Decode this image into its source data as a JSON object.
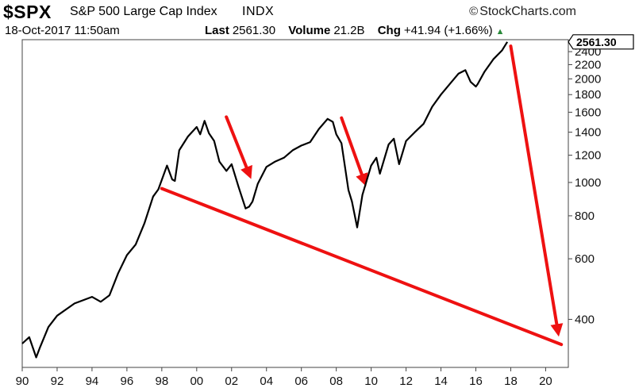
{
  "header": {
    "symbol": "$SPX",
    "name": "S&P 500 Large Cap Index",
    "exchange": "INDX",
    "brand": "StockCharts.com",
    "brand_mark": "©",
    "datetime": "18-Oct-2017 11:50am",
    "last_label": "Last",
    "last_value": "2561.30",
    "volume_label": "Volume",
    "volume_value": "21.2B",
    "chg_label": "Chg",
    "chg_value": "+41.94 (+1.66%)",
    "chg_arrow": "▲"
  },
  "chart_data": {
    "type": "line",
    "title": "$SPX S&P 500 Large Cap Index INDX",
    "xlim": [
      1990,
      2021.3
    ],
    "ylim": [
      290,
      2600
    ],
    "y_scale": "log",
    "last_value_label": "2561.30",
    "x_ticks": [
      {
        "value": 1990,
        "label": "90"
      },
      {
        "value": 1992,
        "label": "92"
      },
      {
        "value": 1994,
        "label": "94"
      },
      {
        "value": 1996,
        "label": "96"
      },
      {
        "value": 1998,
        "label": "98"
      },
      {
        "value": 2000,
        "label": "00"
      },
      {
        "value": 2002,
        "label": "02"
      },
      {
        "value": 2004,
        "label": "04"
      },
      {
        "value": 2006,
        "label": "06"
      },
      {
        "value": 2008,
        "label": "08"
      },
      {
        "value": 2010,
        "label": "10"
      },
      {
        "value": 2012,
        "label": "12"
      },
      {
        "value": 2014,
        "label": "14"
      },
      {
        "value": 2016,
        "label": "16"
      },
      {
        "value": 2018,
        "label": "18"
      },
      {
        "value": 2020,
        "label": "20"
      }
    ],
    "y_ticks": [
      400,
      600,
      800,
      1000,
      1200,
      1400,
      1600,
      1800,
      2000,
      2200,
      2400
    ],
    "grid": false,
    "series": [
      {
        "color": "#000000",
        "x": [
          1990.0,
          1990.4,
          1990.8,
          1991.0,
          1991.5,
          1992.0,
          1993.0,
          1994.0,
          1994.5,
          1995.0,
          1995.5,
          1996.0,
          1996.5,
          1997.0,
          1997.5,
          1997.8,
          1998.3,
          1998.6,
          1998.75,
          1999.0,
          1999.5,
          2000.0,
          2000.2,
          2000.45,
          2000.7,
          2001.0,
          2001.3,
          2001.7,
          2002.0,
          2002.4,
          2002.8,
          2003.0,
          2003.2,
          2003.5,
          2004.0,
          2004.5,
          2005.0,
          2005.5,
          2006.0,
          2006.5,
          2007.0,
          2007.5,
          2007.8,
          2008.0,
          2008.3,
          2008.7,
          2008.9,
          2009.2,
          2009.5,
          2010.0,
          2010.3,
          2010.5,
          2011.0,
          2011.3,
          2011.6,
          2012.0,
          2012.5,
          2013.0,
          2013.5,
          2014.0,
          2014.5,
          2015.0,
          2015.4,
          2015.7,
          2016.0,
          2016.1,
          2016.5,
          2017.0,
          2017.5,
          2017.8
        ],
        "y": [
          340,
          355,
          310,
          330,
          380,
          410,
          445,
          465,
          450,
          470,
          545,
          615,
          660,
          760,
          910,
          955,
          1120,
          1020,
          1010,
          1240,
          1360,
          1450,
          1380,
          1510,
          1390,
          1320,
          1150,
          1080,
          1130,
          970,
          840,
          850,
          880,
          990,
          1110,
          1150,
          1180,
          1240,
          1280,
          1310,
          1430,
          1530,
          1500,
          1380,
          1300,
          950,
          880,
          740,
          920,
          1120,
          1180,
          1060,
          1290,
          1340,
          1130,
          1320,
          1400,
          1480,
          1660,
          1800,
          1930,
          2070,
          2120,
          1960,
          1900,
          1930,
          2100,
          2280,
          2420,
          2561.3
        ]
      }
    ],
    "annotations": [
      {
        "type": "line",
        "color": "#ee1111",
        "from": [
          1998.0,
          960
        ],
        "to": [
          2020.9,
          338
        ]
      },
      {
        "type": "arrow",
        "color": "#ee1111",
        "from": [
          2001.7,
          1550
        ],
        "to": [
          2003.0,
          1060
        ]
      },
      {
        "type": "arrow",
        "color": "#ee1111",
        "from": [
          2008.3,
          1540
        ],
        "to": [
          2009.6,
          1010
        ]
      },
      {
        "type": "arrow",
        "color": "#ee1111",
        "from": [
          2018.0,
          2490
        ],
        "to": [
          2020.7,
          370
        ]
      }
    ]
  }
}
